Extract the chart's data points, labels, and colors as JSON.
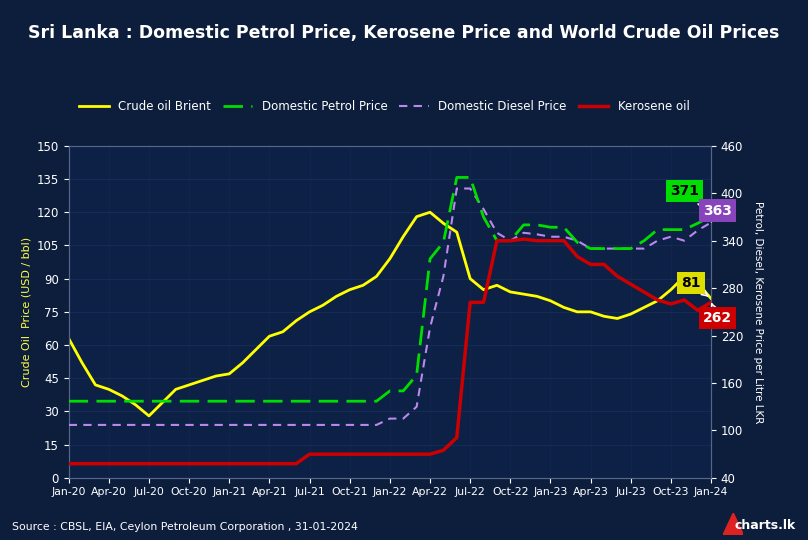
{
  "title": "Sri Lanka : Domestic Petrol Price, Kerosene Price and World Crude Oil Prices",
  "source": "Source : CBSL, EIA, Ceylon Petroleum Corporation , 31-01-2024",
  "background_color": "#0d1e3d",
  "plot_bg_color": "#0d2045",
  "header_color": "#0a1a35",
  "ylabel_left": "Crude Oil  Price (USD / bbl)",
  "ylabel_right": "Petrol, Diesel, Kerosene Price per Litre LKR",
  "ylim_left": [
    0,
    150
  ],
  "ylim_right": [
    40,
    460
  ],
  "yticks_left": [
    0,
    15,
    30,
    45,
    60,
    75,
    90,
    105,
    120,
    135,
    150
  ],
  "yticks_right": [
    40,
    100,
    160,
    220,
    280,
    340,
    400,
    460
  ],
  "xtick_labels": [
    "Jan-20",
    "Apr-20",
    "Jul-20",
    "Oct-20",
    "Jan-21",
    "Apr-21",
    "Jul-21",
    "Oct-21",
    "Jan-22",
    "Apr-22",
    "Jul-22",
    "Oct-22",
    "Jan-23",
    "Apr-23",
    "Jul-23",
    "Oct-23",
    "Jan-24"
  ],
  "crude_color": "#ffff00",
  "petrol_color": "#00dd00",
  "diesel_color": "#bb88ee",
  "kerosene_color": "#cc0000",
  "tick_color": "#ffffff",
  "label_color": "#ffffff",
  "grid_color": "#1a3060",
  "crude_oil": [
    63,
    52,
    42,
    40,
    37,
    33,
    28,
    34,
    40,
    42,
    44,
    46,
    47,
    52,
    58,
    64,
    66,
    71,
    75,
    78,
    82,
    85,
    87,
    91,
    99,
    109,
    118,
    120,
    115,
    111,
    90,
    85,
    87,
    84,
    83,
    82,
    80,
    77,
    75,
    75,
    73,
    72,
    74,
    77,
    80,
    85,
    91,
    88,
    81
  ],
  "petrol_lkr": [
    137,
    137,
    137,
    137,
    137,
    137,
    137,
    137,
    137,
    137,
    137,
    137,
    137,
    137,
    137,
    137,
    137,
    137,
    137,
    137,
    137,
    137,
    137,
    137,
    150,
    150,
    170,
    317,
    338,
    420,
    420,
    370,
    340,
    340,
    360,
    360,
    357,
    357,
    338,
    330,
    330,
    330,
    330,
    340,
    354,
    354,
    354,
    362,
    371
  ],
  "diesel_lkr": [
    107,
    107,
    107,
    107,
    107,
    107,
    107,
    107,
    107,
    107,
    107,
    107,
    107,
    107,
    107,
    107,
    107,
    107,
    107,
    107,
    107,
    107,
    107,
    107,
    115,
    115,
    130,
    230,
    295,
    406,
    406,
    380,
    350,
    340,
    350,
    348,
    345,
    345,
    340,
    330,
    330,
    330,
    330,
    330,
    340,
    345,
    340,
    353,
    363
  ],
  "kerosene_lkr": [
    58,
    58,
    58,
    58,
    58,
    58,
    58,
    58,
    58,
    58,
    58,
    58,
    58,
    58,
    58,
    58,
    58,
    58,
    70,
    70,
    70,
    70,
    70,
    70,
    70,
    70,
    70,
    70,
    75,
    91,
    262,
    262,
    340,
    340,
    342,
    340,
    340,
    340,
    320,
    310,
    310,
    295,
    285,
    275,
    265,
    260,
    265,
    252,
    262
  ],
  "annot_petrol": 371,
  "annot_diesel": 363,
  "annot_crude": 81,
  "annot_kerosene": 262
}
